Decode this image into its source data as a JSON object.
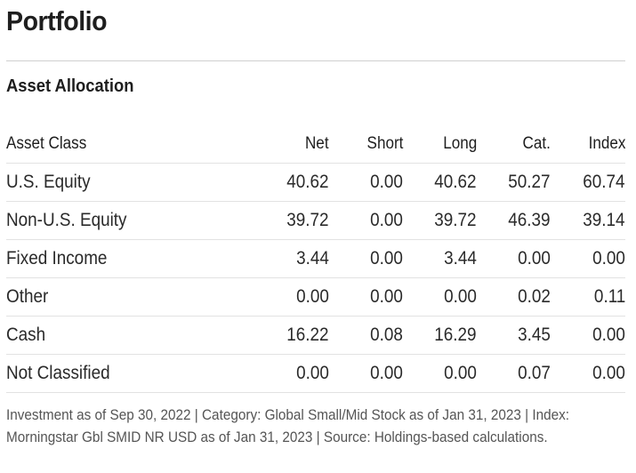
{
  "page_title": "Portfolio",
  "section_title": "Asset Allocation",
  "table": {
    "headers": [
      "Asset Class",
      "Net",
      "Short",
      "Long",
      "Cat.",
      "Index"
    ],
    "rows": [
      [
        "U.S. Equity",
        "40.62",
        "0.00",
        "40.62",
        "50.27",
        "60.74"
      ],
      [
        "Non-U.S. Equity",
        "39.72",
        "0.00",
        "39.72",
        "46.39",
        "39.14"
      ],
      [
        "Fixed Income",
        "3.44",
        "0.00",
        "3.44",
        "0.00",
        "0.00"
      ],
      [
        "Other",
        "0.00",
        "0.00",
        "0.00",
        "0.02",
        "0.11"
      ],
      [
        "Cash",
        "16.22",
        "0.08",
        "16.29",
        "3.45",
        "0.00"
      ],
      [
        "Not Classified",
        "0.00",
        "0.00",
        "0.00",
        "0.07",
        "0.00"
      ]
    ]
  },
  "footnote": "Investment as of Sep 30, 2022 | Category: Global Small/Mid Stock as of Jan 31, 2023 | Index: Morningstar Gbl SMID NR USD as of Jan 31, 2023 | Source: Holdings-based calculations."
}
